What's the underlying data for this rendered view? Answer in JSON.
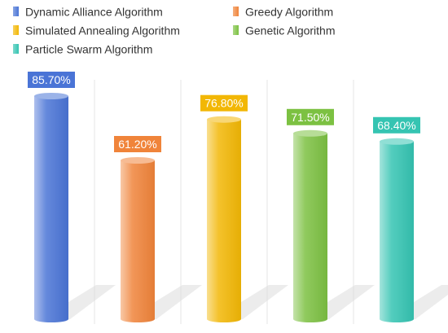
{
  "chart_data": {
    "type": "bar",
    "style": "3d-cylinder",
    "categories": [
      "Dynamic Alliance Algorithm",
      "Greedy Algorithm",
      "Simulated Annealing Algorithm",
      "Genetic Algorithm",
      "Particle Swarm Algorithm"
    ],
    "values": [
      85.7,
      61.2,
      76.8,
      71.5,
      68.4
    ],
    "value_labels": [
      "85.70%",
      "61.20%",
      "76.80%",
      "71.50%",
      "68.40%"
    ],
    "colors": [
      "#4a74d6",
      "#f0843a",
      "#f2b705",
      "#7cc142",
      "#35c4b2"
    ],
    "legend": {
      "position": "top-left",
      "entries": [
        "Dynamic Alliance Algorithm",
        "Greedy Algorithm",
        "Simulated Annealing Algorithm",
        "Genetic Algorithm",
        "Particle Swarm Algorithm"
      ]
    },
    "title": "",
    "xlabel": "",
    "ylabel": "",
    "ylim": [
      0,
      100
    ],
    "grid": "vertical-separators"
  }
}
